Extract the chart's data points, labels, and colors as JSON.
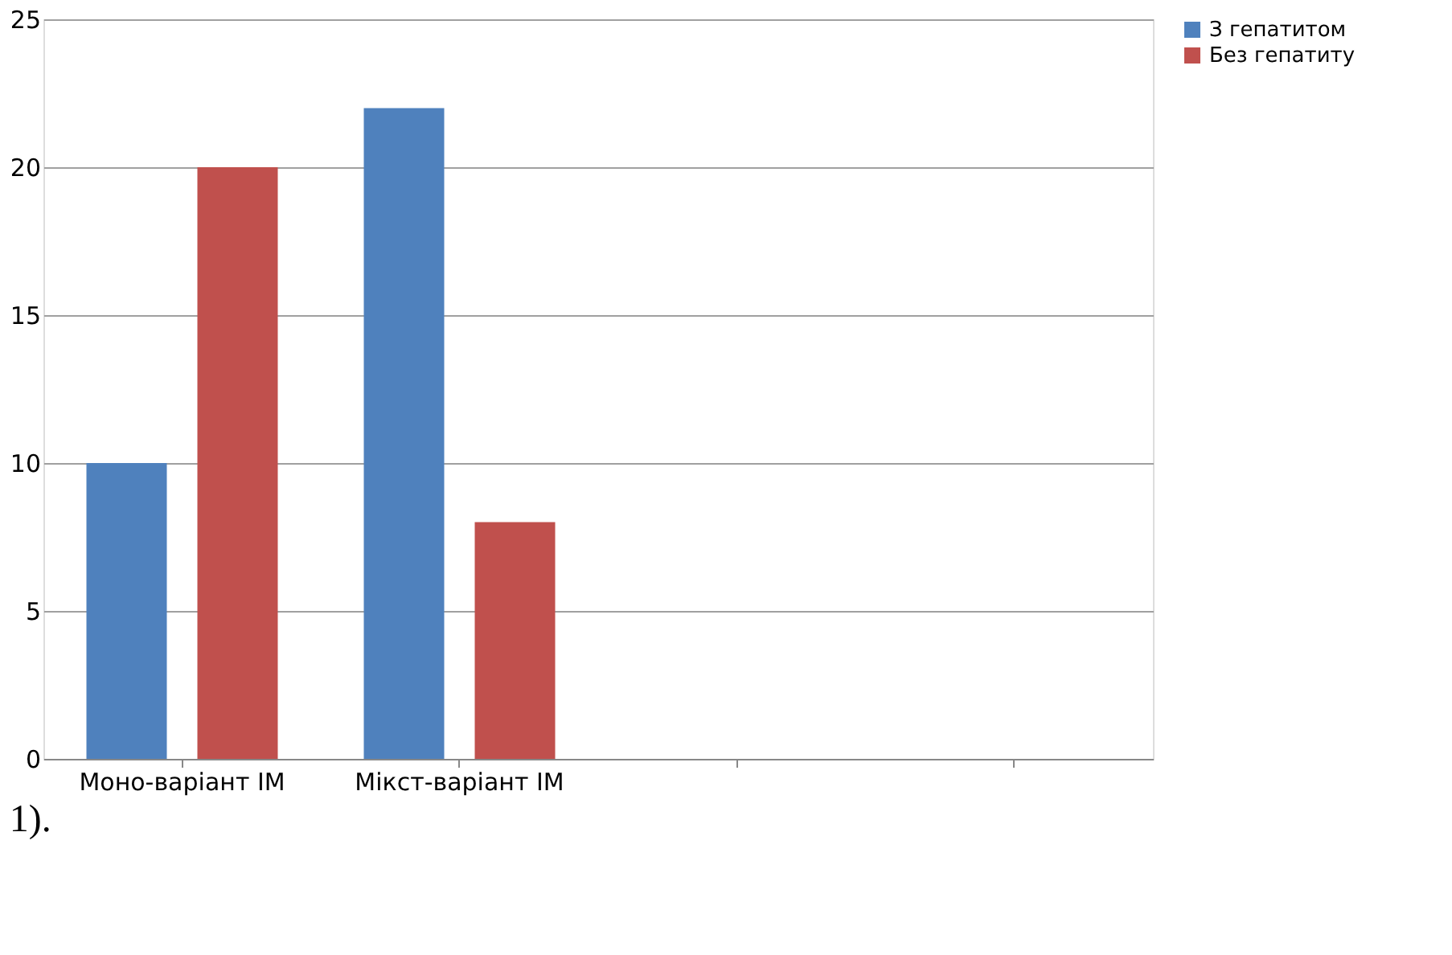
{
  "chart_data": {
    "type": "bar",
    "categories": [
      "Моно-варіант ІМ",
      "Мікст-варіант ІМ",
      null,
      null
    ],
    "series": [
      {
        "name": "З гепатитом",
        "color": "#4f81bd",
        "values": [
          10,
          22,
          null,
          null
        ]
      },
      {
        "name": "Без гепатиту",
        "color": "#c0504d",
        "values": [
          20,
          8,
          null,
          null
        ]
      }
    ],
    "ylim": [
      0,
      25
    ],
    "yticks": [
      0,
      5,
      10,
      15,
      20,
      25
    ],
    "grid": "y",
    "legend": "right",
    "annotations": [
      "1)."
    ]
  }
}
